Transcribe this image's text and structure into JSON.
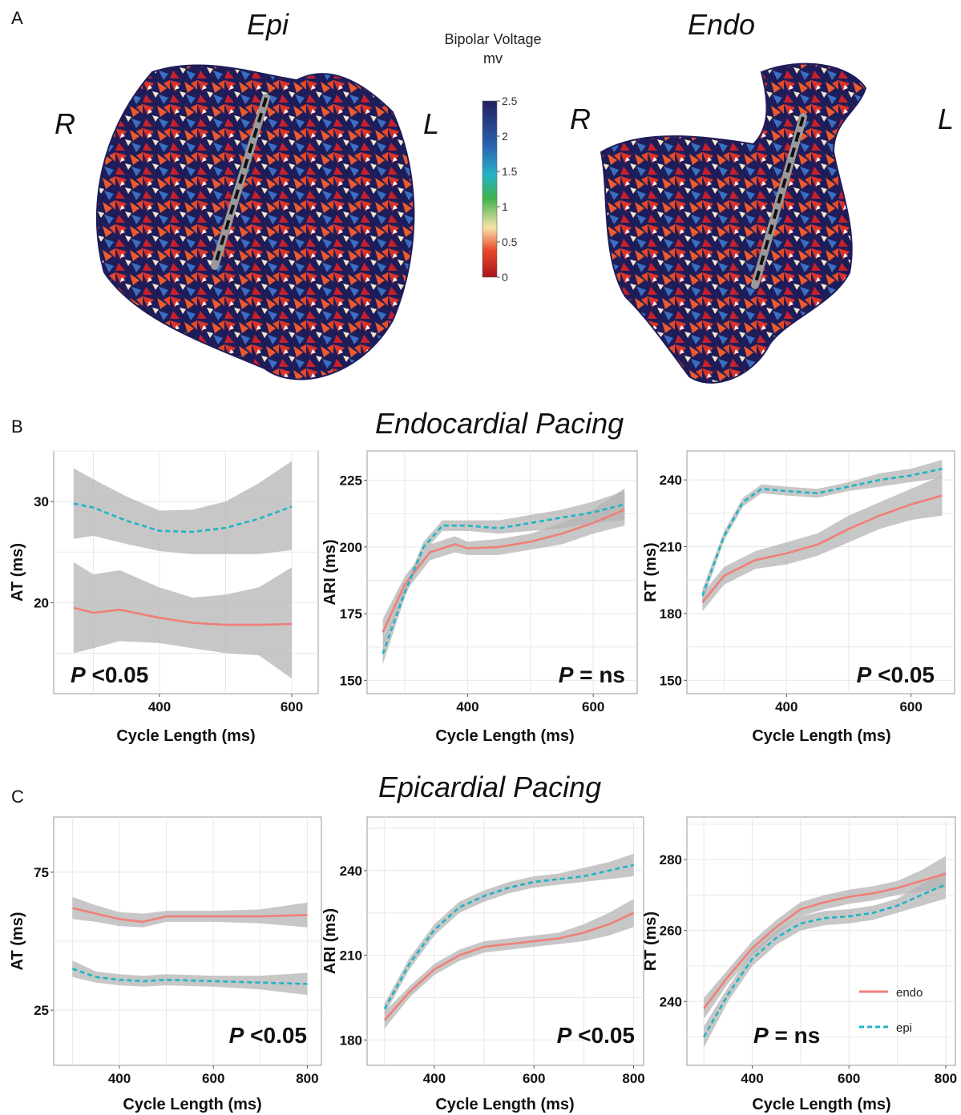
{
  "panels": {
    "a": "A",
    "b": "B",
    "c": "C"
  },
  "maps": {
    "epi_title": "Epi",
    "endo_title": "Endo",
    "epi_right": "R",
    "epi_left": "L",
    "endo_right": "R",
    "endo_left": "L"
  },
  "colorbar": {
    "title_line1": "Bipolar Voltage",
    "title_line2": "mv",
    "ticks": [
      "2.5",
      "2",
      "1.5",
      "1",
      "0.5",
      "0"
    ],
    "colors": [
      "#23205e",
      "#2a61b0",
      "#26b3c6",
      "#3fb24a",
      "#f6e2a8",
      "#e8462a",
      "#a8151e"
    ]
  },
  "sections": {
    "b_title": "Endocardial Pacing",
    "c_title": "Epicardial Pacing"
  },
  "legend": {
    "endo": "endo",
    "epi": "epi"
  },
  "colors": {
    "endo": "#f07f77",
    "epi": "#1fb4c8",
    "band": "#b4b4b4"
  },
  "chart_data": [
    {
      "id": "b_at",
      "type": "line",
      "xlabel": "Cycle Length (ms)",
      "ylabel": "AT (ms)",
      "xlim": [
        240,
        640
      ],
      "ylim": [
        11,
        35
      ],
      "xticks": [
        400,
        600
      ],
      "yticks": [
        20,
        30
      ],
      "p_label": "P",
      "p_value": "<0.05",
      "series": [
        {
          "name": "endo",
          "x": [
            270,
            300,
            340,
            400,
            450,
            500,
            550,
            600
          ],
          "y": [
            19.5,
            19.0,
            19.3,
            18.5,
            18.0,
            17.8,
            17.8,
            17.9
          ],
          "lo": [
            15,
            15.5,
            16.2,
            16,
            15.5,
            15,
            14.8,
            12.5
          ],
          "hi": [
            24,
            22.8,
            23.2,
            21.5,
            20.5,
            20.8,
            21.5,
            23.5
          ]
        },
        {
          "name": "epi",
          "x": [
            270,
            300,
            350,
            400,
            450,
            500,
            550,
            600
          ],
          "y": [
            29.8,
            29.4,
            28.1,
            27.1,
            27.0,
            27.4,
            28.3,
            29.5
          ],
          "lo": [
            26.3,
            26.6,
            25.8,
            25.1,
            24.8,
            24.8,
            24.8,
            25.2
          ],
          "hi": [
            33.3,
            32.2,
            30.5,
            29.1,
            29.2,
            30.0,
            31.8,
            34.0
          ]
        }
      ]
    },
    {
      "id": "b_ari",
      "type": "line",
      "xlabel": "Cycle Length (ms)",
      "ylabel": "ARI (ms)",
      "xlim": [
        240,
        670
      ],
      "ylim": [
        145,
        236
      ],
      "xticks": [
        400,
        600
      ],
      "yticks": [
        150,
        175,
        200,
        225
      ],
      "p_label": "P",
      "p_value": "= ns",
      "series": [
        {
          "name": "endo",
          "x": [
            265,
            300,
            340,
            380,
            400,
            450,
            500,
            550,
            600,
            650
          ],
          "y": [
            168,
            186,
            198,
            201,
            199.5,
            200,
            202,
            205,
            209,
            214
          ],
          "lo": [
            163,
            183,
            195,
            198,
            197,
            197,
            199,
            201,
            205,
            208
          ],
          "hi": [
            173,
            189,
            201,
            204,
            202,
            203,
            205,
            209,
            214,
            222
          ]
        },
        {
          "name": "epi",
          "x": [
            265,
            300,
            330,
            360,
            400,
            450,
            500,
            550,
            600,
            650
          ],
          "y": [
            160,
            183,
            200,
            208,
            208,
            207,
            209,
            211,
            213,
            216
          ],
          "lo": [
            156,
            181,
            198,
            206,
            206,
            205,
            206,
            207,
            209,
            210
          ],
          "hi": [
            164,
            185,
            202,
            210,
            210,
            210,
            212,
            214,
            217,
            221
          ]
        }
      ]
    },
    {
      "id": "b_rt",
      "type": "line",
      "xlabel": "Cycle Length (ms)",
      "ylabel": "RT (ms)",
      "xlim": [
        240,
        670
      ],
      "ylim": [
        144,
        253
      ],
      "xticks": [
        400,
        600
      ],
      "yticks": [
        150,
        180,
        210,
        240
      ],
      "p_label": "P",
      "p_value": "<0.05",
      "series": [
        {
          "name": "endo",
          "x": [
            265,
            300,
            350,
            400,
            450,
            500,
            550,
            600,
            650
          ],
          "y": [
            185,
            197,
            204,
            207,
            211,
            218,
            224,
            229,
            233
          ],
          "lo": [
            181,
            193,
            200,
            202,
            206,
            212,
            218,
            222,
            224
          ],
          "hi": [
            189,
            201,
            208,
            212,
            216,
            224,
            230,
            236,
            242
          ]
        },
        {
          "name": "epi",
          "x": [
            265,
            300,
            330,
            360,
            400,
            450,
            500,
            550,
            600,
            650
          ],
          "y": [
            188,
            215,
            230,
            236,
            235,
            234,
            237,
            240,
            242,
            245
          ],
          "lo": [
            185,
            213,
            228,
            234,
            233,
            232,
            235,
            237,
            239,
            241
          ],
          "hi": [
            191,
            217,
            232,
            238,
            237,
            236,
            239,
            243,
            245,
            249
          ]
        }
      ]
    },
    {
      "id": "c_at",
      "type": "line",
      "xlabel": "Cycle Length (ms)",
      "ylabel": "AT (ms)",
      "xlim": [
        260,
        830
      ],
      "ylim": [
        5,
        95
      ],
      "xticks": [
        400,
        600,
        800
      ],
      "yticks": [
        25,
        75
      ],
      "p_label": "P",
      "p_value": "<0.05",
      "series": [
        {
          "name": "endo",
          "x": [
            300,
            350,
            400,
            450,
            500,
            600,
            700,
            800
          ],
          "y": [
            62,
            60,
            58,
            57,
            59,
            59,
            59,
            59.5
          ],
          "lo": [
            58,
            57,
            55.5,
            55,
            57,
            57,
            56.5,
            55
          ],
          "hi": [
            66,
            63,
            60.5,
            60,
            61,
            61,
            61.5,
            64
          ]
        },
        {
          "name": "epi",
          "x": [
            300,
            350,
            400,
            450,
            500,
            600,
            700,
            800
          ],
          "y": [
            40,
            37,
            36,
            35.5,
            36,
            35.5,
            35,
            34.5
          ],
          "lo": [
            37,
            35,
            34,
            33.5,
            34,
            33.5,
            32.5,
            30.5
          ],
          "hi": [
            43,
            39,
            38,
            37.5,
            38,
            37.5,
            37.5,
            38.5
          ]
        }
      ]
    },
    {
      "id": "c_ari",
      "type": "line",
      "xlabel": "Cycle Length (ms)",
      "ylabel": "ARI (ms)",
      "xlim": [
        265,
        820
      ],
      "ylim": [
        171,
        259
      ],
      "xticks": [
        400,
        600,
        800
      ],
      "yticks": [
        180,
        210,
        240
      ],
      "p_label": "P",
      "p_value": "<0.05",
      "series": [
        {
          "name": "endo",
          "x": [
            300,
            350,
            400,
            450,
            500,
            550,
            600,
            650,
            700,
            750,
            800
          ],
          "y": [
            187,
            197,
            205,
            210,
            213,
            214,
            215,
            216,
            218,
            221,
            225
          ],
          "lo": [
            184,
            195,
            203,
            208,
            211,
            212,
            213,
            214,
            215,
            217,
            220
          ],
          "hi": [
            190,
            199,
            207,
            212,
            215,
            216,
            217,
            218,
            221,
            225,
            230
          ]
        },
        {
          "name": "epi",
          "x": [
            300,
            350,
            400,
            450,
            500,
            550,
            600,
            650,
            700,
            750,
            800
          ],
          "y": [
            191,
            207,
            219,
            227,
            231,
            234,
            236,
            237,
            238,
            240,
            242
          ],
          "lo": [
            189,
            205,
            217,
            225,
            229,
            232,
            234,
            235,
            236,
            237,
            238
          ],
          "hi": [
            193,
            209,
            221,
            229,
            233,
            236,
            238,
            239,
            241,
            243,
            246
          ]
        }
      ]
    },
    {
      "id": "c_rt",
      "type": "line",
      "xlabel": "Cycle Length (ms)",
      "ylabel": "RT (ms)",
      "xlim": [
        265,
        820
      ],
      "ylim": [
        222,
        292
      ],
      "xticks": [
        400,
        600,
        800
      ],
      "yticks": [
        240,
        260,
        280
      ],
      "p_label": "P",
      "p_value": "= ns",
      "series": [
        {
          "name": "endo",
          "x": [
            300,
            350,
            400,
            450,
            500,
            550,
            600,
            650,
            700,
            750,
            800
          ],
          "y": [
            238,
            247,
            255,
            261,
            266,
            268,
            269.5,
            270.5,
            272,
            274,
            276
          ],
          "lo": [
            235,
            245,
            253,
            259,
            264,
            266,
            267.5,
            268.5,
            270,
            271,
            272
          ],
          "hi": [
            241,
            249,
            257,
            263,
            268,
            270,
            271.5,
            272.5,
            274,
            277,
            281
          ]
        },
        {
          "name": "epi",
          "x": [
            300,
            350,
            400,
            450,
            500,
            550,
            600,
            650,
            700,
            750,
            800
          ],
          "y": [
            230,
            242,
            252,
            258,
            262,
            263.5,
            264,
            265,
            267,
            270,
            273
          ],
          "lo": [
            227,
            240,
            250,
            256,
            260,
            261.5,
            262,
            263,
            265,
            267,
            269
          ],
          "hi": [
            233,
            244,
            254,
            260,
            264,
            265.5,
            266,
            267,
            269,
            273,
            277
          ]
        }
      ]
    }
  ]
}
